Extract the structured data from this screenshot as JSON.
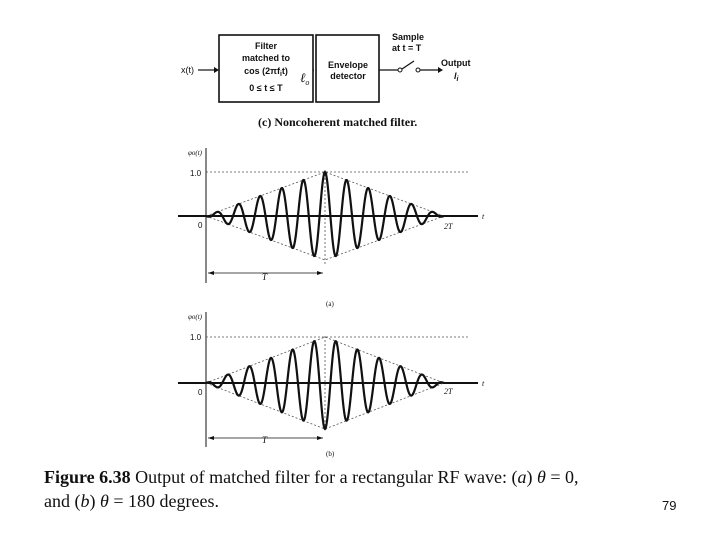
{
  "block_diagram": {
    "input_label": "x(t)",
    "filter_line1": "Filter",
    "filter_line2": "matched to",
    "filter_line3": "cos (2πf",
    "filter_line3_sub": "i",
    "filter_line3_end": "t)",
    "filter_line4": "0 ≤ t ≤ T",
    "envelope_line1": "Envelope",
    "envelope_line2": "detector",
    "sample_line1": "Sample",
    "sample_line2": "at t = T",
    "output_line1": "Output",
    "output_line2": "l",
    "output_line2_sub": "i",
    "handwritten_mark": "ℓ",
    "handwritten_sub": "o",
    "caption": "(c) Noncoherent matched filter."
  },
  "plot_a": {
    "y_axis_label": "φo(t)",
    "tick_1": "1.0",
    "tick_0": "0",
    "x_axis_label": "t",
    "tick_2T": "2T",
    "span_label": "T",
    "sub_caption": "(a)"
  },
  "plot_b": {
    "y_axis_label": "φo(t)",
    "tick_1": "1.0",
    "tick_0": "0",
    "x_axis_label": "t",
    "tick_2T": "2T",
    "span_label": "T",
    "sub_caption": "(b)"
  },
  "caption": {
    "figure_label": "Figure 6.38",
    "text_1": " Output of matched filter for a rectangular RF wave: (",
    "a_letter": "a",
    "text_2": ") ",
    "theta_1": "θ",
    "text_3": " = 0,",
    "text_4": "and (",
    "b_letter": "b",
    "text_5": ") ",
    "theta_2": "θ",
    "text_6": " = 180 degrees."
  },
  "page_number": "79",
  "chart_data": [
    {
      "type": "line",
      "name_ref": "plot_a",
      "x_range": [
        0,
        2
      ],
      "ylim": [
        -1,
        1
      ],
      "x_unit": "T",
      "envelope_peak": {
        "x": 1,
        "y": 1.0
      },
      "carrier_cycles_over_2T": 11,
      "phase_deg": 0
    },
    {
      "type": "line",
      "name_ref": "plot_b",
      "x_range": [
        0,
        2
      ],
      "ylim": [
        -1,
        1
      ],
      "x_unit": "T",
      "envelope_peak": {
        "x": 1,
        "y": 1.0
      },
      "carrier_cycles_over_2T": 11,
      "phase_deg": 180
    }
  ]
}
